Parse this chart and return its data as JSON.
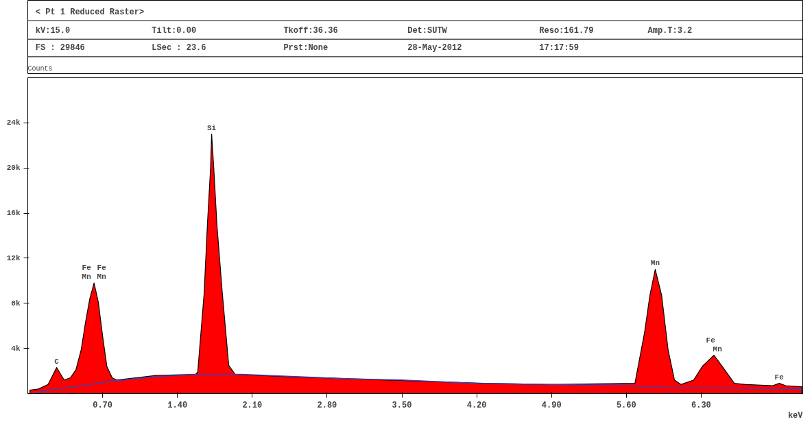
{
  "chart_data": {
    "type": "area",
    "title": "< Pt   1 Reduced Raster>",
    "xlabel": "keV",
    "ylabel": "Counts",
    "xlim": [
      0,
      7.25
    ],
    "ylim": [
      0,
      28000
    ],
    "xticks": [
      {
        "value": 0.7,
        "label": "0.70"
      },
      {
        "value": 1.4,
        "label": "1.40"
      },
      {
        "value": 2.1,
        "label": "2.10"
      },
      {
        "value": 2.8,
        "label": "2.80"
      },
      {
        "value": 3.5,
        "label": "3.50"
      },
      {
        "value": 4.2,
        "label": "4.20"
      },
      {
        "value": 4.9,
        "label": "4.90"
      },
      {
        "value": 5.6,
        "label": "5.60"
      },
      {
        "value": 6.3,
        "label": "6.30"
      }
    ],
    "yticks": [
      {
        "value": 4000,
        "label": "4k"
      },
      {
        "value": 8000,
        "label": "8k"
      },
      {
        "value": 12000,
        "label": "12k"
      },
      {
        "value": 16000,
        "label": "16k"
      },
      {
        "value": 20000,
        "label": "20k"
      },
      {
        "value": 24000,
        "label": "24k"
      }
    ],
    "grid": false,
    "series": [
      {
        "color": "#ff0000",
        "x": [
          0.02,
          0.1,
          0.19,
          0.27,
          0.34,
          0.4,
          0.45,
          0.5,
          0.54,
          0.58,
          0.62,
          0.66,
          0.7,
          0.74,
          0.79,
          0.83,
          1.2,
          1.57,
          1.59,
          1.65,
          1.68,
          1.71,
          1.72,
          1.74,
          1.77,
          1.82,
          1.88,
          1.94,
          2.43,
          3.04,
          3.66,
          4.27,
          4.88,
          5.68,
          5.77,
          5.82,
          5.87,
          5.93,
          5.99,
          6.05,
          6.11,
          6.23,
          6.31,
          6.42,
          6.52,
          6.61,
          6.72,
          6.97,
          7.03,
          7.09,
          7.24
        ],
        "values": [
          300,
          400,
          800,
          2300,
          1200,
          1400,
          2100,
          3900,
          6300,
          8400,
          9800,
          8100,
          5100,
          2400,
          1400,
          1200,
          1600,
          1700,
          1900,
          8900,
          14900,
          20000,
          23000,
          20000,
          14900,
          8900,
          2500,
          1700,
          1500,
          1300,
          1100,
          900,
          800,
          900,
          5400,
          8700,
          11000,
          8700,
          3900,
          1200,
          800,
          1200,
          2400,
          3400,
          2100,
          900,
          800,
          700,
          900,
          700,
          600
        ]
      },
      {
        "type": "line",
        "color": "#4040b0",
        "x": [
          0.05,
          0.2,
          0.5,
          0.8,
          1.2,
          1.6,
          2.0,
          2.5,
          3.0,
          3.5,
          4.2,
          4.9,
          5.6,
          6.0,
          6.5,
          7.24
        ],
        "values": [
          0,
          300,
          700,
          1100,
          1500,
          1700,
          1700,
          1500,
          1300,
          1200,
          900,
          800,
          700,
          500,
          500,
          400
        ]
      }
    ],
    "annotations": [
      "kV:15.0",
      "Tilt:0.00",
      "Tkoff:36.36",
      "Det:SUTW",
      "Reso:161.79",
      "Amp.T:3.2",
      "FS : 29846",
      "LSec : 23.6",
      "Prst:None",
      "28-May-2012",
      "17:17:59",
      {
        "text": "C",
        "x": 0.27,
        "y": 2300
      },
      {
        "text": "Fe",
        "x": 0.62,
        "y": 9800
      },
      {
        "text": "Fe",
        "x": 0.62,
        "y": 9800
      },
      {
        "text": "Mn",
        "x": 0.62,
        "y": 9800
      },
      {
        "text": "Mn",
        "x": 0.62,
        "y": 9800
      },
      {
        "text": "Si",
        "x": 1.72,
        "y": 23000
      },
      {
        "text": "Mn",
        "x": 5.87,
        "y": 11000
      },
      {
        "text": "Fe",
        "x": 6.42,
        "y": 3400
      },
      {
        "text": "Mn",
        "x": 6.42,
        "y": 3400
      },
      {
        "text": "Fe",
        "x": 7.03,
        "y": 900
      }
    ]
  }
}
